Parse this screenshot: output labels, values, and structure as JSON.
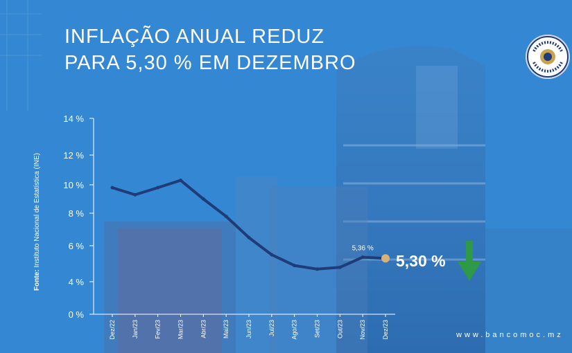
{
  "title_lines": [
    "INFLAÇÃO ANUAL REDUZ",
    "PARA 5,30 % EM DEZEMBRO"
  ],
  "source_label": "Fonte:",
  "source_text": "Instituto Nacional de Estatística (INE)",
  "website": "www.bancomoc.mz",
  "logo_text": "BANCO DE MOÇAMBIQUE",
  "highlight_value": "5,30 %",
  "colors": {
    "line": "#1f3c78",
    "last_point": "#d6b17a",
    "arrow": "#2e9a48",
    "text": "#ffffff"
  },
  "chart_data": {
    "type": "line",
    "title": "INFLAÇÃO ANUAL REDUZ PARA 5,30 % EM DEZEMBRO",
    "xlabel": "",
    "ylabel": "",
    "categories": [
      "Dez/22",
      "Jan/23",
      "Fev/23",
      "Mar/23",
      "Abr/23",
      "Mai/23",
      "Jun/23",
      "Jul/23",
      "Ago/23",
      "Set/23",
      "Out/23",
      "Nov/23",
      "Dez/23"
    ],
    "values": [
      9.8,
      9.3,
      9.8,
      10.3,
      9.0,
      7.8,
      6.5,
      5.5,
      4.9,
      4.7,
      4.8,
      5.36,
      5.3
    ],
    "ylim": [
      0,
      14
    ],
    "yticks": [
      0,
      4,
      6,
      8,
      10,
      12,
      14
    ],
    "ytick_labels": [
      "0 %",
      "4 %",
      "6 %",
      "8 %",
      "10 %",
      "12 %",
      "14 %"
    ],
    "annotations": [
      {
        "category": "Nov/23",
        "label": "5,36 %"
      }
    ],
    "grid": false,
    "legend": "none"
  }
}
